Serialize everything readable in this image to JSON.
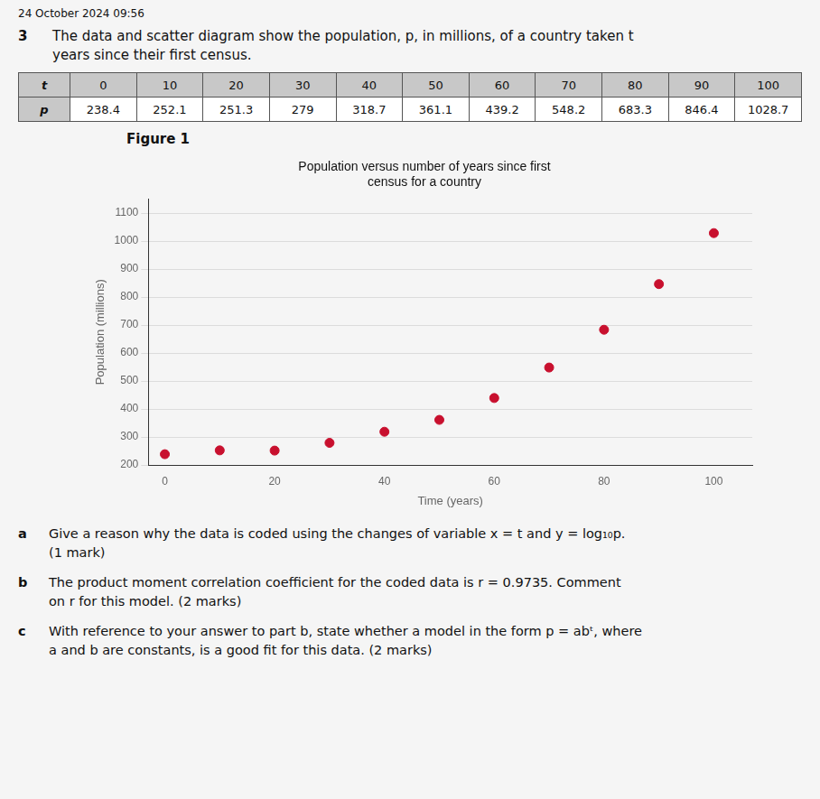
{
  "chart_data": {
    "type": "scatter",
    "title": [
      "Population versus number of years since first",
      "census for a country"
    ],
    "x_label": "Time (years)",
    "y_label": "Population (millions)",
    "x": [
      0,
      10,
      20,
      30,
      40,
      50,
      60,
      70,
      80,
      90,
      100
    ],
    "values": [
      238.4,
      252.1,
      251.3,
      279,
      318.7,
      361.1,
      439.2,
      548.2,
      683.3,
      846.4,
      1028.7
    ],
    "color": "#c8102e",
    "xlim": [
      -3,
      107
    ],
    "ylim": [
      200,
      1150
    ],
    "xticks": [
      0,
      20,
      40,
      60,
      80,
      100
    ],
    "yticks": [
      200,
      300,
      400,
      500,
      600,
      700,
      800,
      900,
      1000,
      1100
    ],
    "grid": "y",
    "annotations": {
      "timestamp": "24 October 2024    09:56",
      "question_number": "3",
      "question_lines": [
        "The data and scatter diagram show the population, p, in millions, of a country taken t",
        "years since their first census."
      ],
      "table_row_labels": [
        "t",
        "p"
      ],
      "figure_label": "Figure 1",
      "parts": [
        {
          "label": "a",
          "lines": [
            "Give a reason why the data is coded using the changes of variable x = t and y = log₁₀p.",
            "(1 mark)"
          ]
        },
        {
          "label": "b",
          "lines": [
            "The product moment correlation coefficient for the coded data is r = 0.9735. Comment",
            "on r for this model.   (2 marks)"
          ]
        },
        {
          "label": "c",
          "lines": [
            "With reference to your answer to part b, state whether a model in the form p = abᵗ, where",
            "a and b are constants, is a good fit for this data.   (2 marks)"
          ]
        }
      ]
    }
  }
}
